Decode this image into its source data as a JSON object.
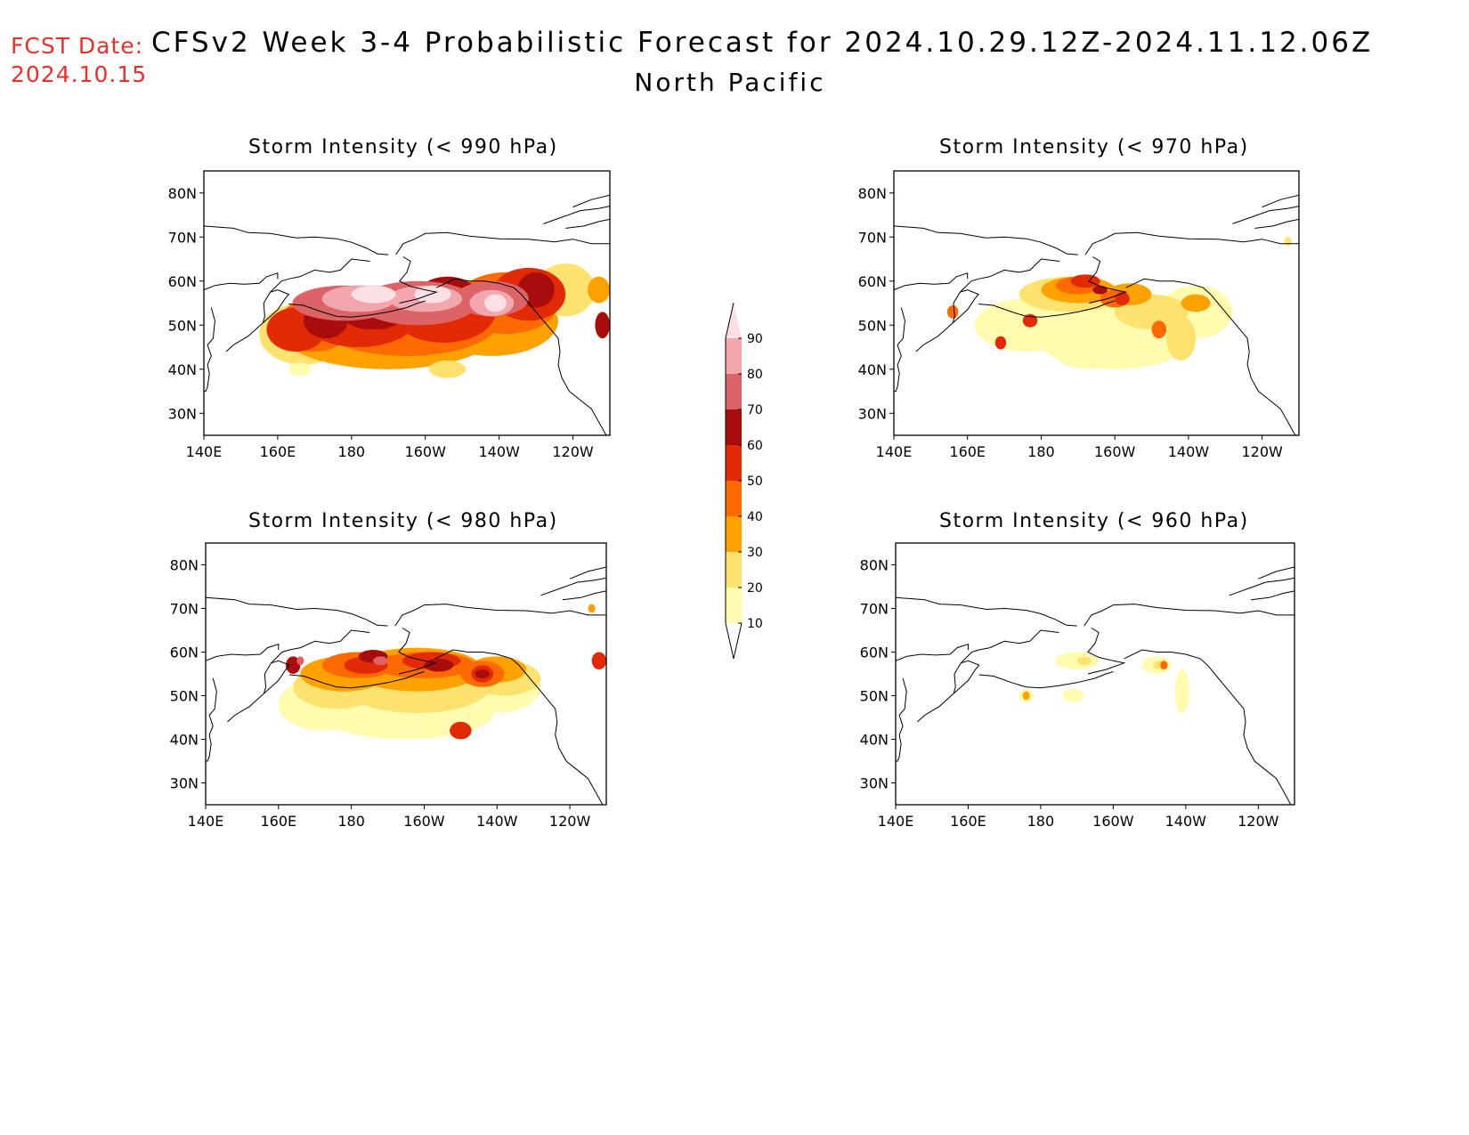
{
  "header": {
    "fcst_label": "FCST Date:",
    "fcst_date": "2024.10.15",
    "title": "CFSv2 Week 3-4 Probabilistic Forecast for 2024.10.29.12Z-2024.11.12.06Z",
    "region": "North Pacific"
  },
  "axes": {
    "lat_ticks": [
      "80N",
      "70N",
      "60N",
      "50N",
      "40N",
      "30N"
    ],
    "lon_ticks": [
      "140E",
      "160E",
      "180",
      "160W",
      "140W",
      "120W"
    ]
  },
  "panels": [
    {
      "title": "Storm Intensity (< 990 hPa)",
      "coverage": "widespread",
      "max_level": 90
    },
    {
      "title": "Storm Intensity (< 970 hPa)",
      "coverage": "scattered",
      "max_level": 60
    },
    {
      "title": "Storm Intensity (< 980 hPa)",
      "coverage": "broad",
      "max_level": 80
    },
    {
      "title": "Storm Intensity (< 960 hPa)",
      "coverage": "sparse",
      "max_level": 40
    }
  ],
  "colorbar": {
    "labels": [
      "90",
      "80",
      "70",
      "60",
      "50",
      "40",
      "30",
      "20",
      "10"
    ],
    "colors": [
      "#fde0e4",
      "#f2a6ae",
      "#dc6466",
      "#a80d0d",
      "#e22a07",
      "#ff6a00",
      "#ffa200",
      "#fee270",
      "#fffcb0"
    ]
  },
  "map_colors": {
    "c1": "#fffcb0",
    "c2": "#fee270",
    "c3": "#ffa200",
    "c4": "#ff6a00",
    "c5": "#e22a07",
    "c6": "#a80d0d",
    "c7": "#dc6466",
    "c8": "#f2a6ae",
    "c9": "#fde0e4"
  }
}
